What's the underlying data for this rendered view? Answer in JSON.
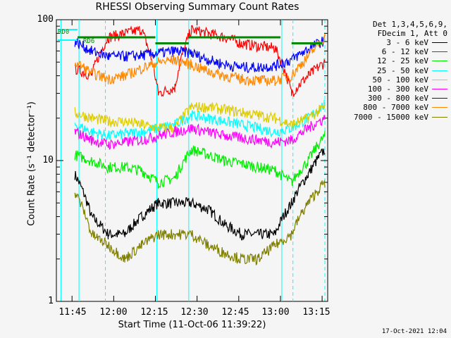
{
  "chart_data": {
    "type": "line",
    "title": "RHESSI Observing Summary Count Rates",
    "xlabel": "Start Time (11-Oct-06 11:39:22)",
    "ylabel": "Count Rate (s⁻¹ detector⁻¹)",
    "yscale": "log",
    "ylim": [
      1,
      100
    ],
    "xlim": [
      "11:39:22",
      "13:17"
    ],
    "x_ticks": [
      "11:45",
      "12:00",
      "12:15",
      "12:30",
      "12:45",
      "13:00",
      "13:15"
    ],
    "y_ticks": [
      "1",
      "10",
      "100"
    ],
    "legend_header": [
      "Det 1,3,4,5,6,9,",
      "FDecim 1, Att 0"
    ],
    "markers": [
      "RD0",
      "RD6"
    ],
    "timestamp": "17-Oct-2021 12:04",
    "x": [
      "11:40",
      "11:46",
      "11:52",
      "11:58",
      "12:04",
      "12:10",
      "12:16",
      "12:22",
      "12:28",
      "12:34",
      "12:40",
      "12:46",
      "12:52",
      "12:58",
      "13:04",
      "13:10",
      "13:16"
    ],
    "series": [
      {
        "name": "3 - 6 keV",
        "color": "#000000",
        "values": [
          null,
          8,
          4,
          3,
          3,
          4,
          5,
          5,
          5,
          4.5,
          3.5,
          3,
          3,
          3,
          5,
          8,
          12
        ]
      },
      {
        "name": "6 - 12 keV",
        "color": "#ff0000",
        "values": [
          null,
          45,
          40,
          75,
          80,
          85,
          30,
          33,
          85,
          80,
          75,
          68,
          65,
          63,
          30,
          40,
          50
        ]
      },
      {
        "name": "12 - 25 keV",
        "color": "#00ee00",
        "values": [
          null,
          11,
          10,
          9,
          9,
          8.5,
          7,
          7.5,
          12,
          11,
          10,
          9.5,
          9,
          8.5,
          7,
          10,
          15
        ]
      },
      {
        "name": "25 - 50 keV",
        "color": "#00ffff",
        "values": [
          null,
          18,
          16,
          15,
          15.5,
          16,
          17,
          18,
          21,
          20,
          19,
          18,
          17,
          16,
          17,
          20,
          25
        ]
      },
      {
        "name": "50 - 100 keV",
        "color": "#ddcc00",
        "values": [
          null,
          22,
          20,
          19,
          19,
          18,
          17,
          17,
          24,
          24,
          23,
          22,
          21,
          20,
          18,
          20,
          24
        ]
      },
      {
        "name": "100 - 300 keV",
        "color": "#ff00ff",
        "values": [
          null,
          16,
          14,
          13,
          13.5,
          14,
          15,
          16,
          17,
          16,
          15,
          14.5,
          14,
          13.5,
          14,
          17,
          20
        ]
      },
      {
        "name": "300 - 800 keV",
        "color": "#0000ff",
        "values": [
          null,
          70,
          60,
          55,
          55,
          56,
          58,
          60,
          58,
          52,
          48,
          46,
          46,
          47,
          52,
          62,
          72
        ]
      },
      {
        "name": "800 - 7000 keV",
        "color": "#ff8800",
        "values": [
          null,
          50,
          42,
          38,
          40,
          45,
          50,
          52,
          48,
          43,
          40,
          38,
          37,
          37,
          40,
          55,
          75
        ]
      },
      {
        "name": "7000 - 15000 keV",
        "color": "#808000",
        "values": [
          null,
          6,
          3,
          2.5,
          2,
          2.5,
          3,
          3,
          3,
          2.5,
          2.2,
          2,
          2,
          2.5,
          3,
          5,
          7
        ]
      }
    ]
  }
}
